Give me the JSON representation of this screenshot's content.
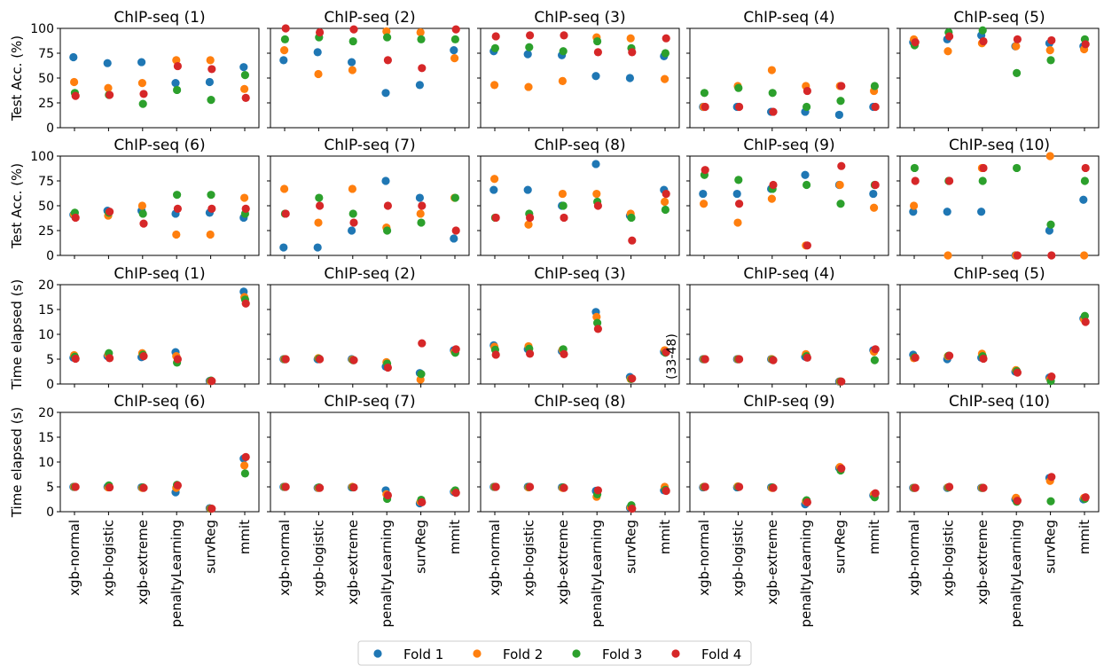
{
  "figure": {
    "row_ylabels": [
      "Test Acc. (%)",
      "Test Acc. (%)",
      "Time elapsed (s)",
      "Time elapsed (s)"
    ],
    "side_note": "(33-48)"
  },
  "legend": {
    "items": [
      {
        "label": "Fold 1",
        "color": "#1f77b4"
      },
      {
        "label": "Fold 2",
        "color": "#ff7f0e"
      },
      {
        "label": "Fold 3",
        "color": "#2ca02c"
      },
      {
        "label": "Fold 4",
        "color": "#d62728"
      }
    ]
  },
  "chart_data": {
    "type": "scatter",
    "categories": [
      "xgb-normal",
      "xgb-logistic",
      "xgb-extreme",
      "penaltyLearning",
      "survReg",
      "mmit"
    ],
    "series_names": [
      "Fold 1",
      "Fold 2",
      "Fold 3",
      "Fold 4"
    ],
    "series_colors": [
      "#1f77b4",
      "#ff7f0e",
      "#2ca02c",
      "#d62728"
    ],
    "rows": [
      {
        "ylabel": "Test Acc. (%)",
        "ylim": [
          0,
          100
        ],
        "yticks": [
          0,
          25,
          50,
          75,
          100
        ],
        "panels": [
          {
            "title": "ChIP-seq (1)",
            "values": [
              [
                71,
                46,
                35,
                32
              ],
              [
                65,
                40,
                33,
                33
              ],
              [
                66,
                45,
                24,
                34
              ],
              [
                45,
                68,
                38,
                62
              ],
              [
                46,
                68,
                28,
                59
              ],
              [
                61,
                39,
                53,
                30
              ]
            ]
          },
          {
            "title": "ChIP-seq (2)",
            "values": [
              [
                68,
                78,
                89,
                100
              ],
              [
                76,
                54,
                91,
                96
              ],
              [
                66,
                58,
                87,
                99
              ],
              [
                35,
                97,
                91,
                68
              ],
              [
                43,
                96,
                89,
                60
              ],
              [
                78,
                70,
                89,
                99
              ]
            ]
          },
          {
            "title": "ChIP-seq (3)",
            "values": [
              [
                77,
                43,
                80,
                92
              ],
              [
                74,
                41,
                81,
                93
              ],
              [
                73,
                47,
                77,
                93
              ],
              [
                52,
                91,
                87,
                76
              ],
              [
                50,
                90,
                80,
                76
              ],
              [
                72,
                49,
                75,
                90
              ]
            ]
          },
          {
            "title": "ChIP-seq (4)",
            "values": [
              [
                21,
                21,
                35,
                21
              ],
              [
                21,
                42,
                40,
                21
              ],
              [
                16,
                58,
                35,
                16
              ],
              [
                16,
                42,
                21,
                37
              ],
              [
                13,
                42,
                27,
                42
              ],
              [
                21,
                37,
                42,
                21
              ]
            ]
          },
          {
            "title": "ChIP-seq (5)",
            "values": [
              [
                86,
                89,
                83,
                86
              ],
              [
                89,
                77,
                96,
                92
              ],
              [
                93,
                85,
                98,
                87
              ],
              [
                82,
                82,
                55,
                89
              ],
              [
                85,
                78,
                68,
                88
              ],
              [
                82,
                79,
                89,
                84
              ]
            ]
          }
        ]
      },
      {
        "ylabel": "Test Acc. (%)",
        "ylim": [
          0,
          100
        ],
        "yticks": [
          0,
          25,
          50,
          75,
          100
        ],
        "panels": [
          {
            "title": "ChIP-seq (6)",
            "values": [
              [
                41,
                41,
                43,
                38
              ],
              [
                45,
                40,
                43,
                44
              ],
              [
                45,
                50,
                42,
                32
              ],
              [
                42,
                21,
                61,
                47
              ],
              [
                43,
                21,
                61,
                47
              ],
              [
                38,
                58,
                42,
                47
              ]
            ]
          },
          {
            "title": "ChIP-seq (7)",
            "values": [
              [
                8,
                67,
                42,
                42
              ],
              [
                8,
                33,
                58,
                50
              ],
              [
                25,
                67,
                42,
                33
              ],
              [
                75,
                28,
                25,
                50
              ],
              [
                58,
                42,
                33,
                50
              ],
              [
                17,
                58,
                58,
                25
              ]
            ]
          },
          {
            "title": "ChIP-seq (8)",
            "values": [
              [
                66,
                77,
                38,
                38
              ],
              [
                66,
                31,
                42,
                38
              ],
              [
                50,
                62,
                50,
                38
              ],
              [
                92,
                62,
                54,
                50
              ],
              [
                40,
                42,
                38,
                15
              ],
              [
                66,
                54,
                46,
                62
              ]
            ]
          },
          {
            "title": "ChIP-seq (9)",
            "values": [
              [
                62,
                52,
                81,
                86
              ],
              [
                62,
                33,
                76,
                52
              ],
              [
                67,
                57,
                67,
                71
              ],
              [
                81,
                10,
                71,
                10
              ],
              [
                71,
                71,
                52,
                90
              ],
              [
                62,
                48,
                71,
                71
              ]
            ]
          },
          {
            "title": "ChIP-seq (10)",
            "values": [
              [
                44,
                50,
                88,
                75
              ],
              [
                44,
                0,
                75,
                75
              ],
              [
                44,
                88,
                75,
                88
              ],
              [
                0,
                0,
                88,
                0
              ],
              [
                25,
                100,
                31,
                0
              ],
              [
                56,
                0,
                75,
                88
              ]
            ]
          }
        ]
      },
      {
        "ylabel": "Time elapsed (s)",
        "ylim": [
          0,
          20
        ],
        "yticks": [
          0,
          5,
          10,
          15,
          20
        ],
        "panels": [
          {
            "title": "ChIP-seq (1)",
            "values": [
              [
                5.3,
                5.8,
                5.5,
                5.1
              ],
              [
                5.6,
                5.9,
                6.2,
                5.2
              ],
              [
                5.4,
                6.2,
                5.9,
                5.6
              ],
              [
                6.4,
                5.6,
                4.3,
                5.0
              ],
              [
                0.6,
                0.6,
                0.7,
                0.6
              ],
              [
                18.6,
                17.5,
                17.0,
                16.2
              ]
            ]
          },
          {
            "title": "ChIP-seq (2)",
            "values": [
              [
                5.0,
                5.0,
                5.0,
                5.0
              ],
              [
                5.0,
                5.2,
                5.1,
                5.0
              ],
              [
                5.0,
                4.9,
                4.8,
                4.8
              ],
              [
                3.5,
                4.4,
                4.1,
                3.3
              ],
              [
                2.2,
                0.9,
                2.0,
                8.2
              ],
              [
                6.8,
                6.5,
                6.3,
                7.0
              ]
            ]
          },
          {
            "title": "ChIP-seq (3)",
            "values": [
              [
                7.8,
                7.5,
                6.9,
                5.9
              ],
              [
                7.0,
                7.6,
                7.1,
                6.1
              ],
              [
                6.6,
                6.9,
                7.0,
                6.0
              ],
              [
                14.5,
                13.5,
                12.3,
                11.1
              ],
              [
                1.4,
                1.0,
                1.0,
                1.1
              ],
              [
                6.5,
                6.8,
                6.3,
                6.4
              ]
            ]
          },
          {
            "title": "ChIP-seq (4)",
            "values": [
              [
                5.0,
                5.0,
                5.0,
                5.0
              ],
              [
                5.0,
                5.0,
                5.0,
                5.0
              ],
              [
                5.0,
                5.0,
                4.9,
                4.8
              ],
              [
                5.5,
                6.0,
                5.6,
                5.3
              ],
              [
                0.5,
                0.5,
                0.5,
                0.5
              ],
              [
                6.8,
                6.5,
                4.8,
                7.0
              ]
            ]
          },
          {
            "title": "ChIP-seq (5)",
            "values": [
              [
                5.9,
                5.2,
                5.4,
                5.3
              ],
              [
                5.0,
                5.6,
                5.7,
                5.7
              ],
              [
                5.3,
                6.1,
                5.6,
                5.1
              ],
              [
                2.5,
                2.8,
                2.6,
                2.3
              ],
              [
                1.3,
                1.0,
                0.6,
                1.5
              ],
              [
                13.2,
                13.0,
                13.7,
                12.5
              ]
            ]
          }
        ]
      },
      {
        "ylabel": "Time elapsed (s)",
        "ylim": [
          0,
          20
        ],
        "yticks": [
          0,
          5,
          10,
          15,
          20
        ],
        "panels": [
          {
            "title": "ChIP-seq (6)",
            "values": [
              [
                5.0,
                5.0,
                5.0,
                5.0
              ],
              [
                5.0,
                4.9,
                5.3,
                4.9
              ],
              [
                4.9,
                4.8,
                4.9,
                4.8
              ],
              [
                3.9,
                4.8,
                5.4,
                5.3
              ],
              [
                0.7,
                0.6,
                0.6,
                0.6
              ],
              [
                10.7,
                9.3,
                7.7,
                11.0
              ]
            ]
          },
          {
            "title": "ChIP-seq (7)",
            "values": [
              [
                5.0,
                5.0,
                5.0,
                5.0
              ],
              [
                4.8,
                4.8,
                4.9,
                4.8
              ],
              [
                4.9,
                5.0,
                4.9,
                4.9
              ],
              [
                4.3,
                3.5,
                2.6,
                3.3
              ],
              [
                1.7,
                2.0,
                2.4,
                1.9
              ],
              [
                4.0,
                4.1,
                4.3,
                3.8
              ]
            ]
          },
          {
            "title": "ChIP-seq (8)",
            "values": [
              [
                5.0,
                5.0,
                5.0,
                5.0
              ],
              [
                5.0,
                4.9,
                5.0,
                5.0
              ],
              [
                4.9,
                4.8,
                4.9,
                4.8
              ],
              [
                4.2,
                3.0,
                3.5,
                4.3
              ],
              [
                0.8,
                0.9,
                1.3,
                0.6
              ],
              [
                4.3,
                5.0,
                4.4,
                4.2
              ]
            ]
          },
          {
            "title": "ChIP-seq (9)",
            "values": [
              [
                4.9,
                5.0,
                5.0,
                5.0
              ],
              [
                4.9,
                5.1,
                5.0,
                5.0
              ],
              [
                4.9,
                4.8,
                4.9,
                4.8
              ],
              [
                1.5,
                2.1,
                2.3,
                1.9
              ],
              [
                8.8,
                9.0,
                8.3,
                8.7
              ],
              [
                3.3,
                3.5,
                2.9,
                3.7
              ]
            ]
          },
          {
            "title": "ChIP-seq (10)",
            "values": [
              [
                4.8,
                4.8,
                4.8,
                4.8
              ],
              [
                4.8,
                4.9,
                4.9,
                5.0
              ],
              [
                4.8,
                4.8,
                4.8,
                4.8
              ],
              [
                2.5,
                2.8,
                2.0,
                2.2
              ],
              [
                6.8,
                6.2,
                2.1,
                7.0
              ],
              [
                2.5,
                2.8,
                2.6,
                2.9
              ]
            ]
          }
        ]
      }
    ]
  }
}
